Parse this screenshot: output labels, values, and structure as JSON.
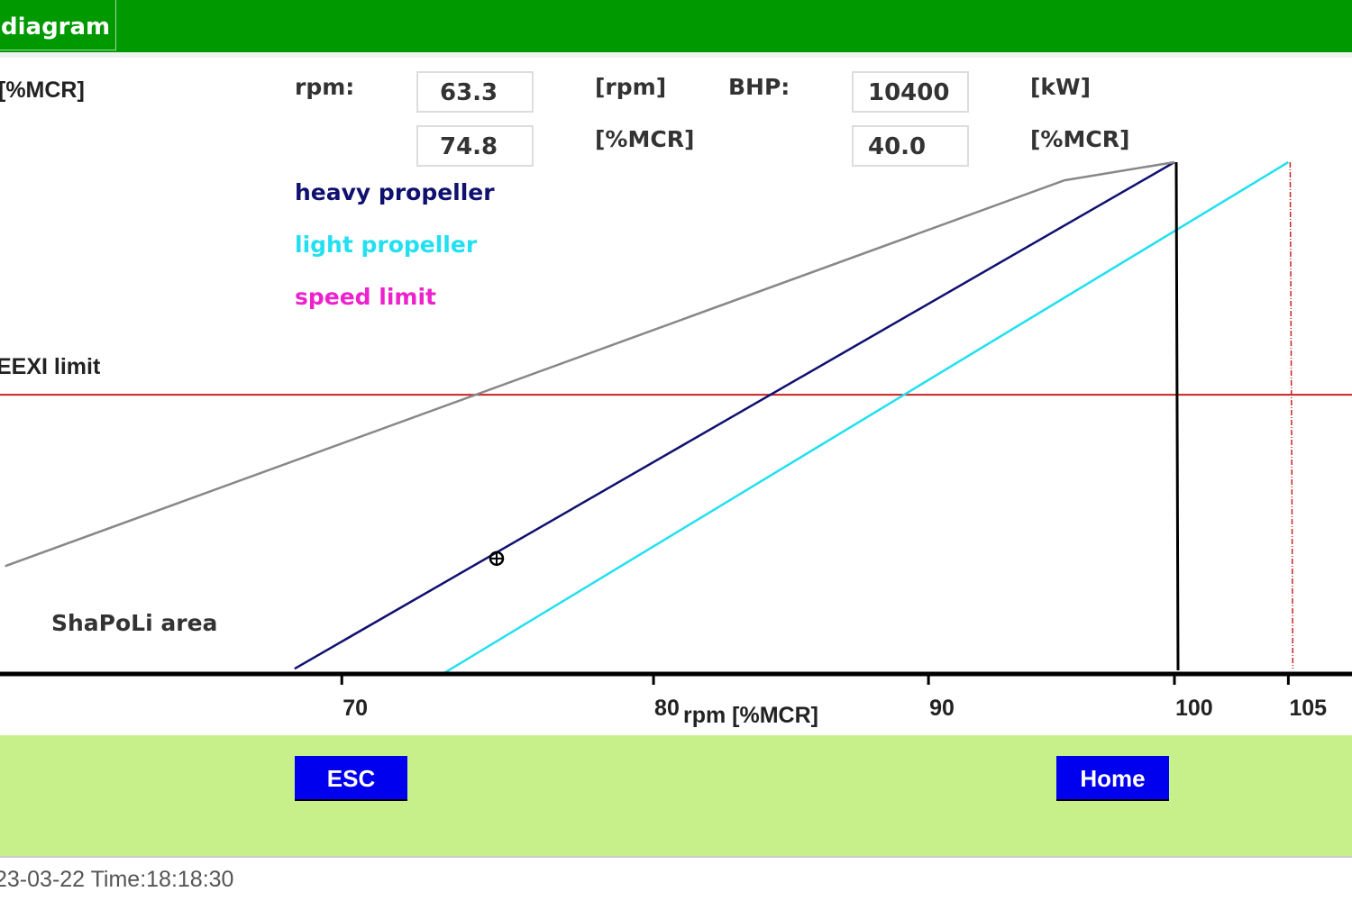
{
  "header": {
    "tab_label": "diagram"
  },
  "readouts": {
    "y_unit": "[%MCR]",
    "rpm_label": "rpm:",
    "rpm_value": "63.3",
    "rpm_unit": "[rpm]",
    "rpm_pct_value": "74.8",
    "rpm_pct_unit": "[%MCR]",
    "bhp_label": "BHP:",
    "bhp_value": "10400",
    "bhp_unit": "[kW]",
    "bhp_pct_value": "40.0",
    "bhp_pct_unit": "[%MCR]"
  },
  "legend": {
    "heavy": {
      "label": "heavy propeller",
      "color": "#101070"
    },
    "light": {
      "label": "light propeller",
      "color": "#22e0f0"
    },
    "speed": {
      "label": "speed limit",
      "color": "#ee22cc"
    }
  },
  "annotations": {
    "eexi": "EEXI limit",
    "shapoli": "ShaPoLi area"
  },
  "chart_data": {
    "type": "line",
    "xlabel": "rpm [%MCR]",
    "x_scale": "log",
    "y_scale": "log",
    "xlim": [
      60,
      107
    ],
    "ylim": [
      30.6,
      100
    ],
    "x_ticks": [
      70,
      80,
      90,
      100,
      105
    ],
    "grid": false,
    "series": [
      {
        "name": "heavy propeller",
        "color": "#101070",
        "points": [
          [
            68.6,
            31
          ],
          [
            100,
            100
          ]
        ]
      },
      {
        "name": "light propeller",
        "color": "#22e0f0",
        "points": [
          [
            73,
            30.5
          ],
          [
            105,
            100
          ]
        ]
      },
      {
        "color": "#888888",
        "points": [
          [
            60.6,
            39.3
          ],
          [
            95.4,
            95.9
          ],
          [
            100,
            100
          ]
        ]
      }
    ],
    "eexi_limit": {
      "y": 58.4,
      "color": "#cc2222"
    },
    "rpm_100_line": {
      "x": 100,
      "color": "#000000"
    },
    "speed_limit_line": {
      "x": 105,
      "color": "#cc2222",
      "style": "dashed"
    },
    "operating_point": {
      "x": 74.8,
      "y": 40.0
    }
  },
  "buttons": {
    "esc": "ESC",
    "home": "Home"
  },
  "footer": {
    "datetime": "23-03-22  Time:18:18:30"
  }
}
